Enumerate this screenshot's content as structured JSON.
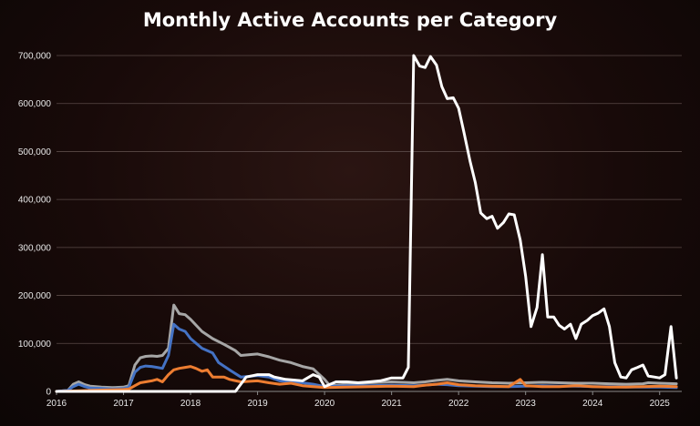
{
  "chart_data": {
    "type": "line",
    "title": "Monthly Active Accounts per Category",
    "xlabel": "",
    "ylabel": "",
    "ylim": [
      0,
      700000
    ],
    "y_ticks": [
      "0",
      "100,000",
      "200,000",
      "300,000",
      "400,000",
      "500,000",
      "600,000",
      "700,000"
    ],
    "x_ticks": [
      "2016",
      "2017",
      "2018",
      "2019",
      "2020",
      "2021",
      "2022",
      "2023",
      "2024",
      "2025"
    ],
    "xlim": [
      2016.0,
      2025.33
    ],
    "grid": true,
    "legend": "none",
    "series": [
      {
        "color": "#a6a6a6",
        "points": [
          [
            2016.0,
            0
          ],
          [
            2016.17,
            2000
          ],
          [
            2016.25,
            15000
          ],
          [
            2016.33,
            20000
          ],
          [
            2016.42,
            14000
          ],
          [
            2016.5,
            11000
          ],
          [
            2016.67,
            9000
          ],
          [
            2016.83,
            8000
          ],
          [
            2017.0,
            9000
          ],
          [
            2017.08,
            12000
          ],
          [
            2017.17,
            55000
          ],
          [
            2017.25,
            70000
          ],
          [
            2017.33,
            73000
          ],
          [
            2017.42,
            74000
          ],
          [
            2017.5,
            73000
          ],
          [
            2017.58,
            75000
          ],
          [
            2017.67,
            90000
          ],
          [
            2017.75,
            180000
          ],
          [
            2017.83,
            162000
          ],
          [
            2017.92,
            160000
          ],
          [
            2018.0,
            150000
          ],
          [
            2018.17,
            125000
          ],
          [
            2018.33,
            110000
          ],
          [
            2018.5,
            98000
          ],
          [
            2018.67,
            85000
          ],
          [
            2018.75,
            75000
          ],
          [
            2018.92,
            77000
          ],
          [
            2019.0,
            78000
          ],
          [
            2019.17,
            72000
          ],
          [
            2019.33,
            65000
          ],
          [
            2019.5,
            60000
          ],
          [
            2019.67,
            52000
          ],
          [
            2019.83,
            47000
          ],
          [
            2020.0,
            25000
          ],
          [
            2020.08,
            12000
          ],
          [
            2020.33,
            15000
          ],
          [
            2020.67,
            18000
          ],
          [
            2021.0,
            20000
          ],
          [
            2021.33,
            18000
          ],
          [
            2021.5,
            20000
          ],
          [
            2021.67,
            23000
          ],
          [
            2021.83,
            25000
          ],
          [
            2022.0,
            22000
          ],
          [
            2022.25,
            20000
          ],
          [
            2022.5,
            18000
          ],
          [
            2022.75,
            17000
          ],
          [
            2023.0,
            18000
          ],
          [
            2023.25,
            19000
          ],
          [
            2023.5,
            18000
          ],
          [
            2023.75,
            17000
          ],
          [
            2024.0,
            17000
          ],
          [
            2024.25,
            16000
          ],
          [
            2024.5,
            15000
          ],
          [
            2024.75,
            16000
          ],
          [
            2024.83,
            18000
          ],
          [
            2025.0,
            17000
          ],
          [
            2025.25,
            16000
          ]
        ]
      },
      {
        "color": "#4472c4",
        "points": [
          [
            2016.0,
            0
          ],
          [
            2016.17,
            2000
          ],
          [
            2016.25,
            10000
          ],
          [
            2016.33,
            15000
          ],
          [
            2016.42,
            10000
          ],
          [
            2016.5,
            7000
          ],
          [
            2016.67,
            6000
          ],
          [
            2016.83,
            5000
          ],
          [
            2017.0,
            6000
          ],
          [
            2017.08,
            9000
          ],
          [
            2017.17,
            40000
          ],
          [
            2017.25,
            50000
          ],
          [
            2017.33,
            53000
          ],
          [
            2017.42,
            52000
          ],
          [
            2017.5,
            50000
          ],
          [
            2017.58,
            48000
          ],
          [
            2017.67,
            75000
          ],
          [
            2017.75,
            140000
          ],
          [
            2017.83,
            130000
          ],
          [
            2017.92,
            125000
          ],
          [
            2018.0,
            110000
          ],
          [
            2018.17,
            90000
          ],
          [
            2018.33,
            80000
          ],
          [
            2018.42,
            60000
          ],
          [
            2018.58,
            45000
          ],
          [
            2018.75,
            30000
          ],
          [
            2018.92,
            32000
          ],
          [
            2019.0,
            33000
          ],
          [
            2019.17,
            30000
          ],
          [
            2019.33,
            22000
          ],
          [
            2019.5,
            20000
          ],
          [
            2019.67,
            18000
          ],
          [
            2019.83,
            15000
          ],
          [
            2020.0,
            10000
          ],
          [
            2020.33,
            12000
          ],
          [
            2020.67,
            12000
          ],
          [
            2021.0,
            13000
          ],
          [
            2021.33,
            12000
          ],
          [
            2021.5,
            13000
          ],
          [
            2021.67,
            15000
          ],
          [
            2021.83,
            14000
          ],
          [
            2022.0,
            12000
          ],
          [
            2022.25,
            11000
          ],
          [
            2022.5,
            10000
          ],
          [
            2022.75,
            10000
          ],
          [
            2023.0,
            11000
          ],
          [
            2023.25,
            12000
          ],
          [
            2023.5,
            11000
          ],
          [
            2023.75,
            11000
          ],
          [
            2024.0,
            10000
          ],
          [
            2024.25,
            10000
          ],
          [
            2024.5,
            9000
          ],
          [
            2024.75,
            9000
          ],
          [
            2025.0,
            9000
          ],
          [
            2025.25,
            8000
          ]
        ]
      },
      {
        "color": "#ed7d31",
        "points": [
          [
            2016.0,
            0
          ],
          [
            2016.25,
            1000
          ],
          [
            2016.5,
            2000
          ],
          [
            2016.75,
            3000
          ],
          [
            2017.0,
            4000
          ],
          [
            2017.08,
            5000
          ],
          [
            2017.17,
            12000
          ],
          [
            2017.25,
            18000
          ],
          [
            2017.33,
            20000
          ],
          [
            2017.42,
            22000
          ],
          [
            2017.5,
            25000
          ],
          [
            2017.58,
            20000
          ],
          [
            2017.67,
            35000
          ],
          [
            2017.75,
            45000
          ],
          [
            2017.83,
            48000
          ],
          [
            2017.92,
            50000
          ],
          [
            2018.0,
            52000
          ],
          [
            2018.08,
            48000
          ],
          [
            2018.17,
            42000
          ],
          [
            2018.25,
            45000
          ],
          [
            2018.33,
            30000
          ],
          [
            2018.5,
            30000
          ],
          [
            2018.58,
            25000
          ],
          [
            2018.75,
            20000
          ],
          [
            2019.0,
            22000
          ],
          [
            2019.17,
            18000
          ],
          [
            2019.33,
            15000
          ],
          [
            2019.5,
            17000
          ],
          [
            2019.67,
            12000
          ],
          [
            2019.83,
            10000
          ],
          [
            2020.0,
            8000
          ],
          [
            2020.33,
            9000
          ],
          [
            2020.67,
            10000
          ],
          [
            2021.0,
            11000
          ],
          [
            2021.33,
            10000
          ],
          [
            2021.5,
            13000
          ],
          [
            2021.67,
            15000
          ],
          [
            2021.83,
            18000
          ],
          [
            2022.0,
            14000
          ],
          [
            2022.25,
            12000
          ],
          [
            2022.5,
            11000
          ],
          [
            2022.75,
            10000
          ],
          [
            2022.92,
            25000
          ],
          [
            2023.0,
            12000
          ],
          [
            2023.25,
            10000
          ],
          [
            2023.5,
            10000
          ],
          [
            2023.75,
            12000
          ],
          [
            2024.0,
            10000
          ],
          [
            2024.25,
            9000
          ],
          [
            2024.5,
            9000
          ],
          [
            2024.75,
            10000
          ],
          [
            2025.0,
            11000
          ],
          [
            2025.25,
            10000
          ]
        ]
      },
      {
        "color": "#ffffff",
        "points": [
          [
            2016.0,
            0
          ],
          [
            2016.5,
            0
          ],
          [
            2017.0,
            0
          ],
          [
            2017.5,
            0
          ],
          [
            2018.0,
            0
          ],
          [
            2018.5,
            0
          ],
          [
            2018.67,
            0
          ],
          [
            2018.75,
            15000
          ],
          [
            2018.83,
            30000
          ],
          [
            2019.0,
            35000
          ],
          [
            2019.17,
            35000
          ],
          [
            2019.25,
            30000
          ],
          [
            2019.42,
            25000
          ],
          [
            2019.67,
            22000
          ],
          [
            2019.83,
            35000
          ],
          [
            2019.92,
            30000
          ],
          [
            2020.0,
            10000
          ],
          [
            2020.17,
            20000
          ],
          [
            2020.33,
            20000
          ],
          [
            2020.5,
            18000
          ],
          [
            2020.67,
            20000
          ],
          [
            2020.83,
            22000
          ],
          [
            2021.0,
            28000
          ],
          [
            2021.17,
            28000
          ],
          [
            2021.25,
            50000
          ],
          [
            2021.33,
            700000
          ],
          [
            2021.42,
            678000
          ],
          [
            2021.5,
            675000
          ],
          [
            2021.58,
            698000
          ],
          [
            2021.67,
            680000
          ],
          [
            2021.75,
            635000
          ],
          [
            2021.83,
            610000
          ],
          [
            2021.92,
            612000
          ],
          [
            2022.0,
            590000
          ],
          [
            2022.08,
            540000
          ],
          [
            2022.17,
            480000
          ],
          [
            2022.25,
            435000
          ],
          [
            2022.33,
            372000
          ],
          [
            2022.42,
            360000
          ],
          [
            2022.5,
            365000
          ],
          [
            2022.58,
            340000
          ],
          [
            2022.67,
            352000
          ],
          [
            2022.75,
            370000
          ],
          [
            2022.83,
            368000
          ],
          [
            2022.92,
            315000
          ],
          [
            2023.0,
            240000
          ],
          [
            2023.08,
            135000
          ],
          [
            2023.17,
            175000
          ],
          [
            2023.25,
            285000
          ],
          [
            2023.33,
            155000
          ],
          [
            2023.42,
            155000
          ],
          [
            2023.5,
            138000
          ],
          [
            2023.58,
            130000
          ],
          [
            2023.67,
            140000
          ],
          [
            2023.75,
            110000
          ],
          [
            2023.83,
            140000
          ],
          [
            2023.92,
            148000
          ],
          [
            2024.0,
            158000
          ],
          [
            2024.08,
            163000
          ],
          [
            2024.17,
            172000
          ],
          [
            2024.25,
            135000
          ],
          [
            2024.33,
            60000
          ],
          [
            2024.42,
            30000
          ],
          [
            2024.5,
            28000
          ],
          [
            2024.58,
            45000
          ],
          [
            2024.67,
            50000
          ],
          [
            2024.75,
            55000
          ],
          [
            2024.83,
            32000
          ],
          [
            2024.92,
            30000
          ],
          [
            2025.0,
            28000
          ],
          [
            2025.08,
            35000
          ],
          [
            2025.17,
            135000
          ],
          [
            2025.25,
            28000
          ]
        ]
      }
    ]
  }
}
